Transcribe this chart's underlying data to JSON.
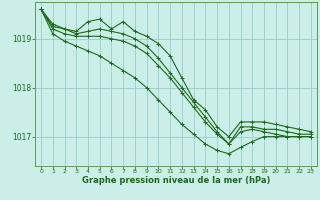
{
  "bg_color": "#cceee8",
  "grid_color": "#99cccc",
  "line_color": "#1a6b1a",
  "marker_color": "#1a6b1a",
  "xlabel": "Graphe pression niveau de la mer (hPa)",
  "xlabel_color": "#1a6b1a",
  "tick_color": "#1a6b1a",
  "axis_color": "#5a9a5a",
  "ylim": [
    1016.4,
    1019.75
  ],
  "yticks": [
    1017,
    1018,
    1019
  ],
  "xlim": [
    -0.5,
    23.5
  ],
  "xticks": [
    0,
    1,
    2,
    3,
    4,
    5,
    6,
    7,
    8,
    9,
    10,
    11,
    12,
    13,
    14,
    15,
    16,
    17,
    18,
    19,
    20,
    21,
    22,
    23
  ],
  "series": [
    [
      1019.6,
      1019.3,
      1019.2,
      1019.15,
      1019.35,
      1019.4,
      1019.2,
      1019.35,
      1019.15,
      1019.05,
      1018.9,
      1018.65,
      1018.2,
      1017.75,
      1017.55,
      1017.2,
      1017.0,
      1017.3,
      1017.3,
      1017.3,
      1017.25,
      1017.2,
      1017.15,
      1017.1
    ],
    [
      1019.6,
      1019.25,
      1019.2,
      1019.1,
      1019.15,
      1019.2,
      1019.15,
      1019.1,
      1019.0,
      1018.85,
      1018.6,
      1018.3,
      1018.0,
      1017.7,
      1017.4,
      1017.1,
      1016.85,
      1017.2,
      1017.2,
      1017.15,
      1017.15,
      1017.1,
      1017.05,
      1017.05
    ],
    [
      1019.6,
      1019.2,
      1019.1,
      1019.05,
      1019.05,
      1019.05,
      1019.0,
      1018.95,
      1018.85,
      1018.7,
      1018.45,
      1018.2,
      1017.9,
      1017.6,
      1017.3,
      1017.05,
      1016.85,
      1017.1,
      1017.15,
      1017.1,
      1017.05,
      1017.0,
      1017.0,
      1017.0
    ],
    [
      1019.6,
      1019.1,
      1018.95,
      1018.85,
      1018.75,
      1018.65,
      1018.5,
      1018.35,
      1018.2,
      1018.0,
      1017.75,
      1017.5,
      1017.25,
      1017.05,
      1016.85,
      1016.72,
      1016.65,
      1016.78,
      1016.9,
      1017.0,
      1017.0,
      1017.0,
      1017.0,
      1017.0
    ]
  ]
}
